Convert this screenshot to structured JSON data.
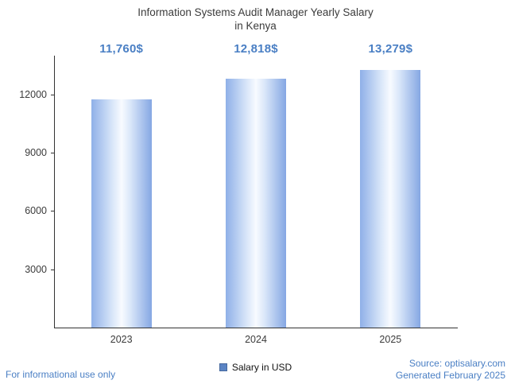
{
  "title": {
    "line1": "Information Systems Audit Manager Yearly Salary",
    "line2": "in Kenya"
  },
  "chart_data": {
    "type": "bar",
    "title": "Information Systems Audit Manager Yearly Salary in Kenya",
    "categories": [
      "2023",
      "2024",
      "2025"
    ],
    "values": [
      11760,
      12818,
      13279
    ],
    "value_labels": [
      "11,760$",
      "12,818$",
      "13,279$"
    ],
    "xlabel": "",
    "ylabel": "",
    "ylim": [
      0,
      14000
    ],
    "yticks": [
      3000,
      6000,
      9000,
      12000
    ],
    "grid": false,
    "legend": [
      "Salary in USD"
    ],
    "legend_position": "bottom",
    "bar_edge_color": "#8fb0e8",
    "bar_center_color": "#f8fbff"
  },
  "legend": {
    "label": "Salary in USD",
    "swatch_color": "#5b84c4"
  },
  "footer": {
    "left": "For informational use only",
    "source": "Source: optisalary.com",
    "generated": "Generated February 2025"
  },
  "colors": {
    "accent_blue": "#4a7fc4",
    "axis": "#333333",
    "text": "#3b3b3b"
  }
}
